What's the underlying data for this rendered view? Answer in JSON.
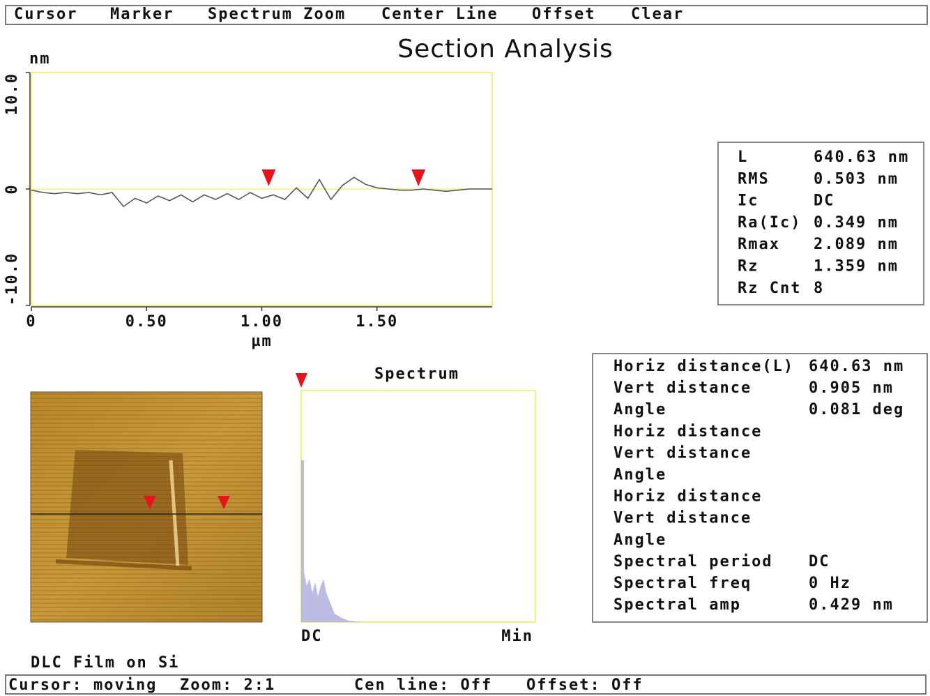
{
  "menu": [
    "Cursor",
    "Marker",
    "Spectrum Zoom",
    "Center Line",
    "Offset",
    "Clear"
  ],
  "title": "Section Analysis",
  "profile": {
    "y_unit": "nm",
    "x_unit": "µm",
    "xlim": [
      0,
      2.0
    ],
    "ylim": [
      -10,
      10
    ],
    "xticks": [
      0,
      {
        "value": 0.5,
        "label": "0.50"
      },
      {
        "value": 1,
        "label": "1.00"
      },
      {
        "value": 1.5,
        "label": "1.50"
      }
    ],
    "yticks": [
      {
        "value": 10,
        "label": "10.0"
      },
      0,
      {
        "value": -10,
        "label": "-10.0"
      }
    ],
    "x": [
      0,
      0.05,
      0.1,
      0.15,
      0.2,
      0.25,
      0.3,
      0.35,
      0.4,
      0.45,
      0.5,
      0.55,
      0.6,
      0.65,
      0.7,
      0.75,
      0.8,
      0.85,
      0.9,
      0.95,
      1.0,
      1.05,
      1.1,
      1.15,
      1.2,
      1.25,
      1.3,
      1.35,
      1.4,
      1.45,
      1.5,
      1.55,
      1.6,
      1.65,
      1.7,
      1.75,
      1.8,
      1.85,
      1.9,
      1.95,
      2.0
    ],
    "values": [
      -0.1,
      -0.3,
      -0.4,
      -0.3,
      -0.4,
      -0.3,
      -0.5,
      -0.3,
      -1.5,
      -0.8,
      -1.2,
      -0.6,
      -1.0,
      -0.5,
      -1.1,
      -0.5,
      -0.9,
      -0.4,
      -0.9,
      -0.3,
      -0.8,
      -0.5,
      -0.9,
      0.1,
      -0.8,
      0.8,
      -0.9,
      0.3,
      1.0,
      0.4,
      0.1,
      0,
      -0.1,
      -0.1,
      0,
      -0.1,
      -0.2,
      -0.1,
      0,
      0,
      0
    ],
    "cursors": [
      1.03,
      1.68
    ],
    "line_color": "#555555",
    "frame_color": "#f2f27a",
    "cursor_color": "#e8141c"
  },
  "stats": {
    "color": "#e8141c",
    "rows": [
      {
        "label": "L",
        "value": "640.63 nm"
      },
      {
        "label": "RMS",
        "value": "0.503 nm"
      },
      {
        "label": "Ic",
        "value": "DC"
      },
      {
        "label": "Ra(Ic)",
        "value": "0.349 nm"
      },
      {
        "label": "Rmax",
        "value": "2.089 nm"
      },
      {
        "label": "Rz",
        "value": "1.359 nm"
      },
      {
        "label": "Rz Cnt",
        "value": "8"
      }
    ]
  },
  "spectrum": {
    "title": "Spectrum",
    "start_label": "DC",
    "end_label": "Min"
  },
  "measurements": {
    "rows": [
      {
        "label": "Horiz distance(L)",
        "value": "640.63 nm",
        "color": "#e8141c"
      },
      {
        "label": "Vert distance",
        "value": "0.905 nm",
        "color": "#e8141c"
      },
      {
        "label": "Angle",
        "value": "0.081 deg",
        "color": "#e8141c"
      },
      {
        "label": "Horiz distance",
        "color": "#33dd33"
      },
      {
        "label": "Vert distance",
        "color": "#33dd33"
      },
      {
        "label": "Angle",
        "color": "#33dd33"
      },
      {
        "label": "Horiz distance",
        "color": "#111111"
      },
      {
        "label": "Vert distance",
        "color": "#111111"
      },
      {
        "label": "Angle",
        "color": "#111111"
      },
      {
        "label": "Spectral period",
        "value": "DC",
        "color": "#e8141c"
      },
      {
        "label": "Spectral freq",
        "value": "0 Hz",
        "color": "#e8141c"
      },
      {
        "label": "Spectral amp",
        "value": "0.429 nm",
        "color": "#e8141c"
      }
    ]
  },
  "image_caption": "DLC Film on Si",
  "status": [
    "Cursor: moving",
    "Zoom: 2:1",
    "Cen line: Off",
    "Offset: Off"
  ]
}
